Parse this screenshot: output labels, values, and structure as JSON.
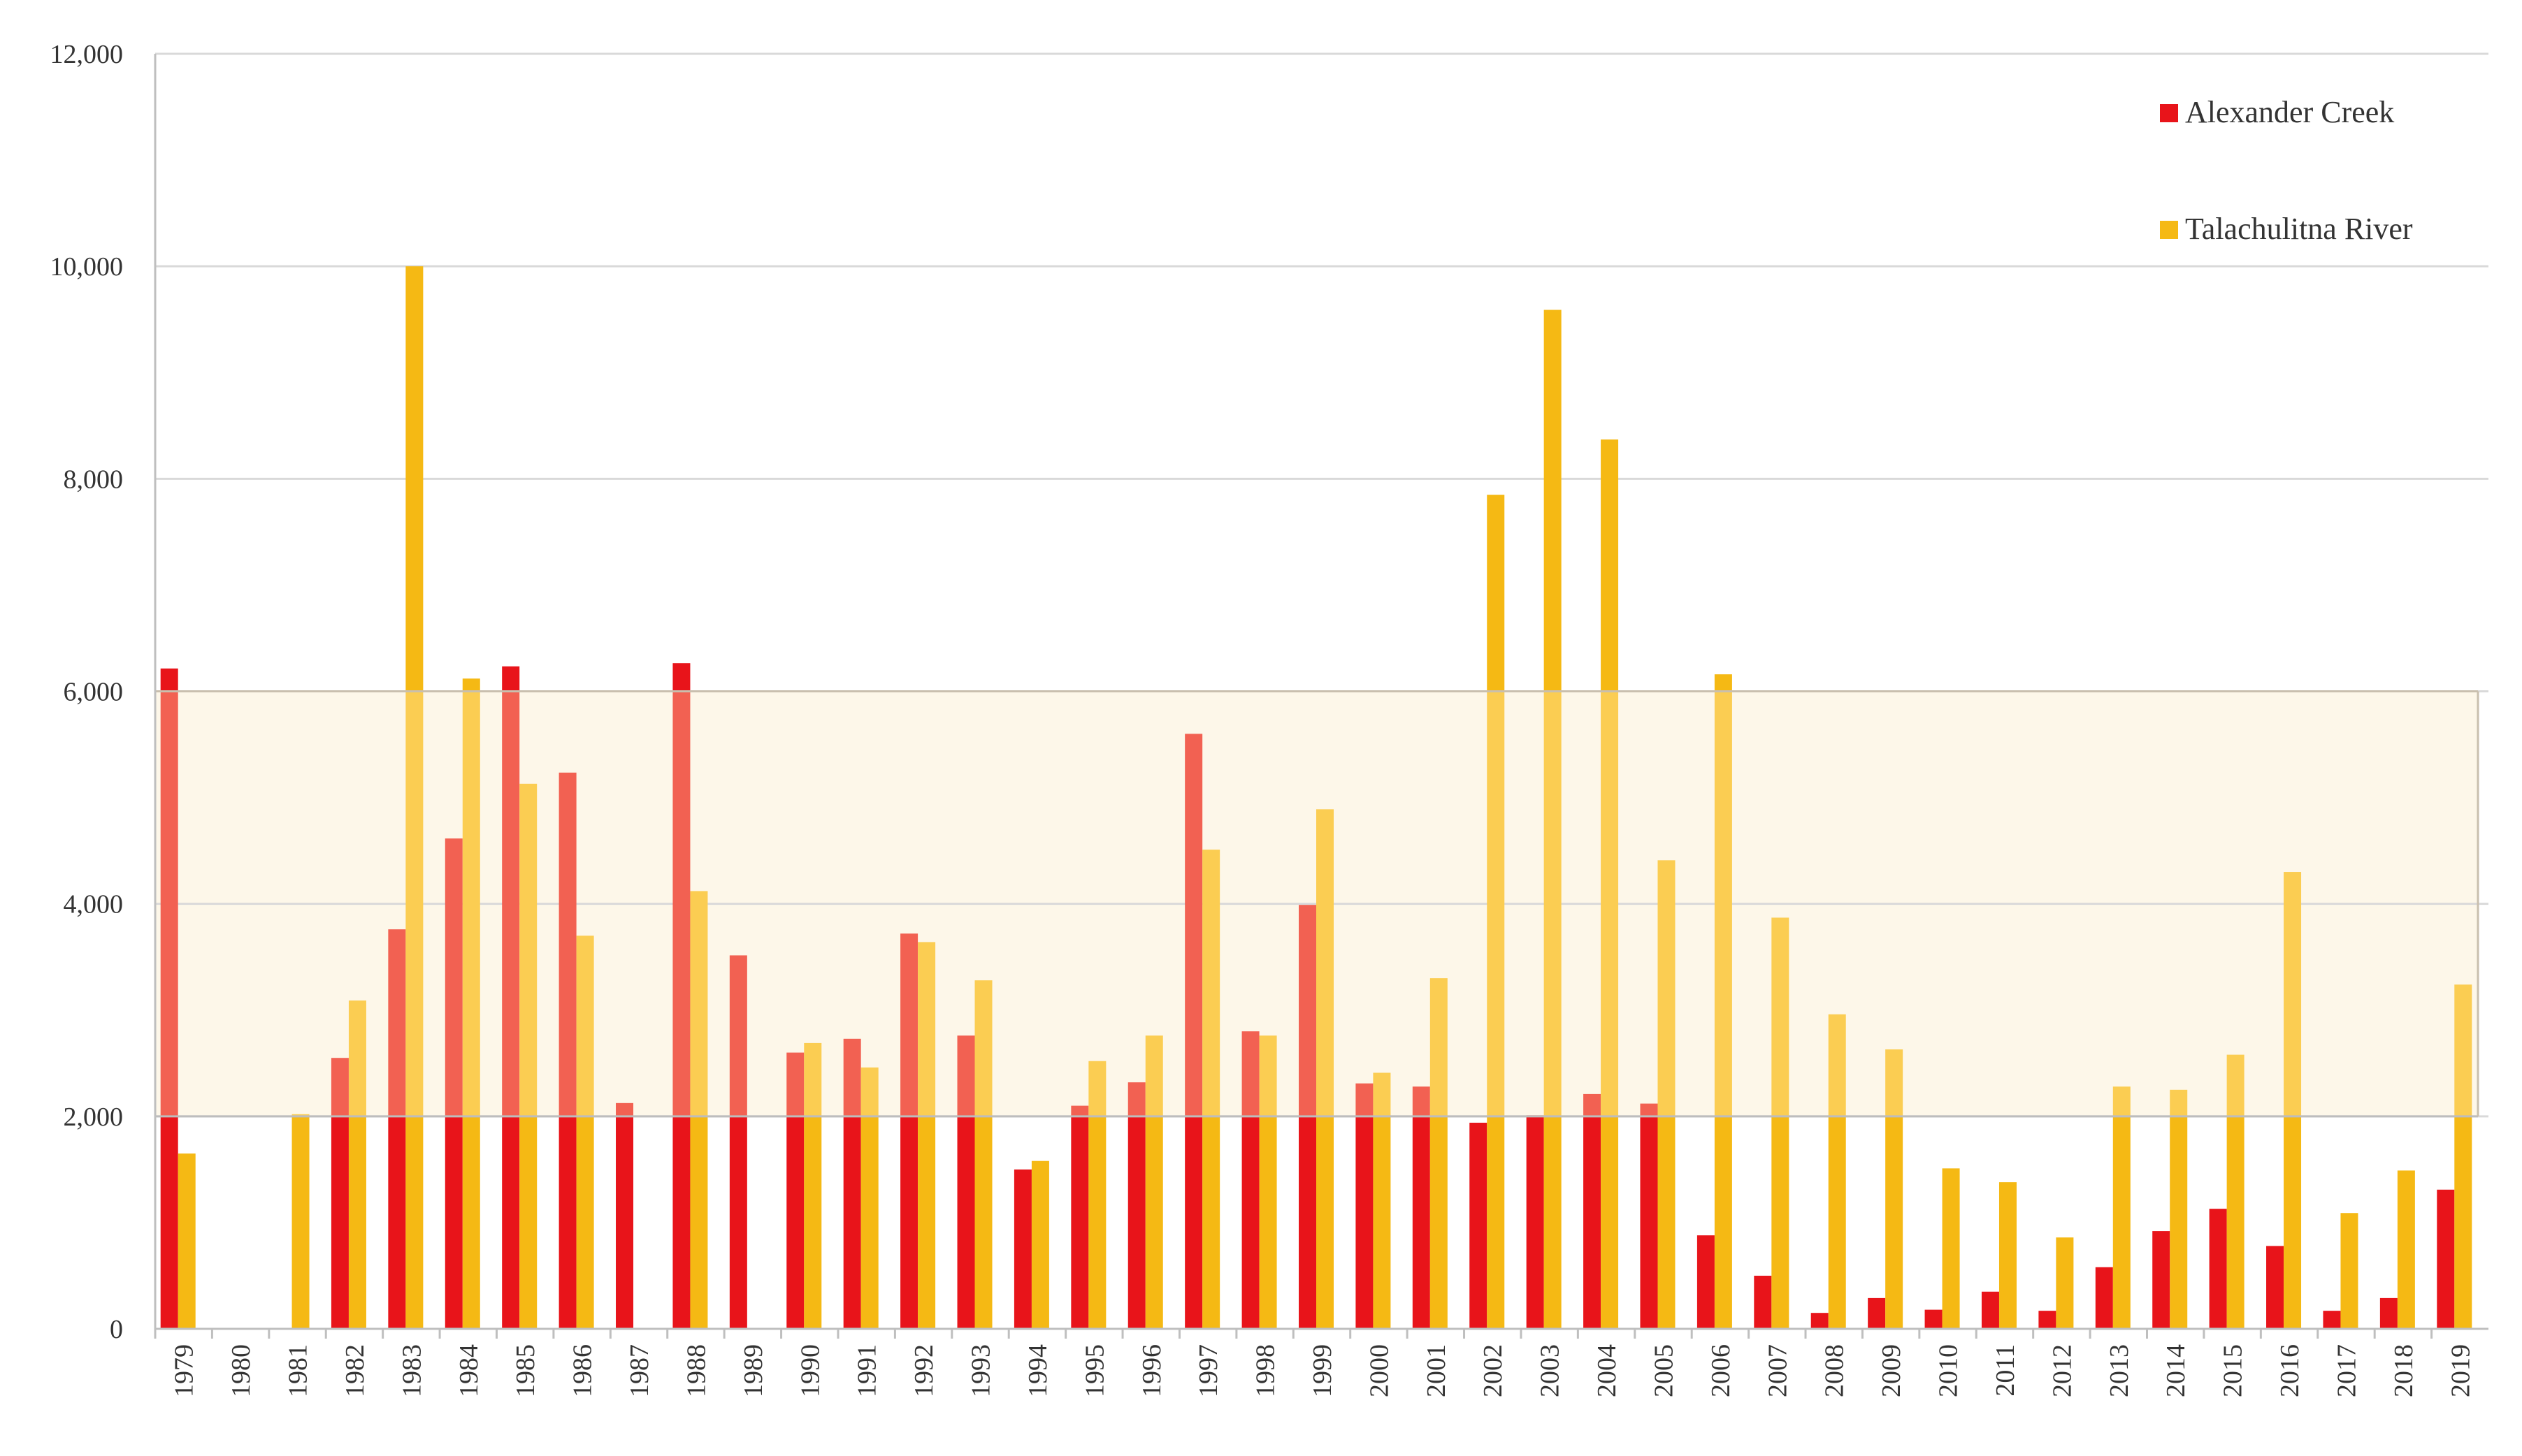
{
  "chart_data": {
    "type": "bar",
    "title": "",
    "xlabel": "",
    "ylabel": "",
    "ylim": [
      0,
      12000
    ],
    "yticks": [
      0,
      2000,
      4000,
      6000,
      8000,
      10000,
      12000
    ],
    "ytick_labels": [
      "0",
      "2,000",
      "4,000",
      "6,000",
      "8,000",
      "10,000",
      "12,000"
    ],
    "grid": "horizontal",
    "legend_position": "top-right",
    "highlight_band": {
      "from": 2000,
      "to": 6000,
      "color": "#fdf7e9"
    },
    "categories": [
      "1979",
      "1980",
      "1981",
      "1982",
      "1983",
      "1984",
      "1985",
      "1986",
      "1987",
      "1988",
      "1989",
      "1990",
      "1991",
      "1992",
      "1993",
      "1994",
      "1995",
      "1996",
      "1997",
      "1998",
      "1999",
      "2000",
      "2001",
      "2002",
      "2003",
      "2004",
      "2005",
      "2006",
      "2007",
      "2008",
      "2009",
      "2010",
      "2011",
      "2012",
      "2013",
      "2014",
      "2015",
      "2016",
      "2017",
      "2018",
      "2019"
    ],
    "series": [
      {
        "name": "Alexander Creek",
        "color": "#e8141a",
        "band_color": "#f26152",
        "values": [
          6215,
          null,
          null,
          2550,
          3760,
          4615,
          6235,
          5235,
          2125,
          6265,
          3515,
          2600,
          2730,
          3720,
          2760,
          1500,
          2100,
          2320,
          5600,
          2800,
          3990,
          2310,
          2280,
          1940,
          2010,
          2210,
          2120,
          880,
          500,
          150,
          290,
          180,
          350,
          170,
          580,
          920,
          1130,
          780,
          170,
          290,
          1310
        ]
      },
      {
        "name": "Talachulitna River",
        "color": "#f5b914",
        "band_color": "#fbcd52",
        "values": [
          1650,
          null,
          2020,
          3090,
          10000,
          6120,
          5130,
          3700,
          null,
          4120,
          null,
          2690,
          2460,
          3640,
          3280,
          1580,
          2520,
          2760,
          4510,
          2760,
          4890,
          2410,
          3300,
          7850,
          9590,
          8370,
          4410,
          6160,
          3870,
          2960,
          2630,
          1510,
          1380,
          860,
          2280,
          2250,
          2580,
          4300,
          1090,
          1490,
          3240
        ]
      }
    ]
  }
}
